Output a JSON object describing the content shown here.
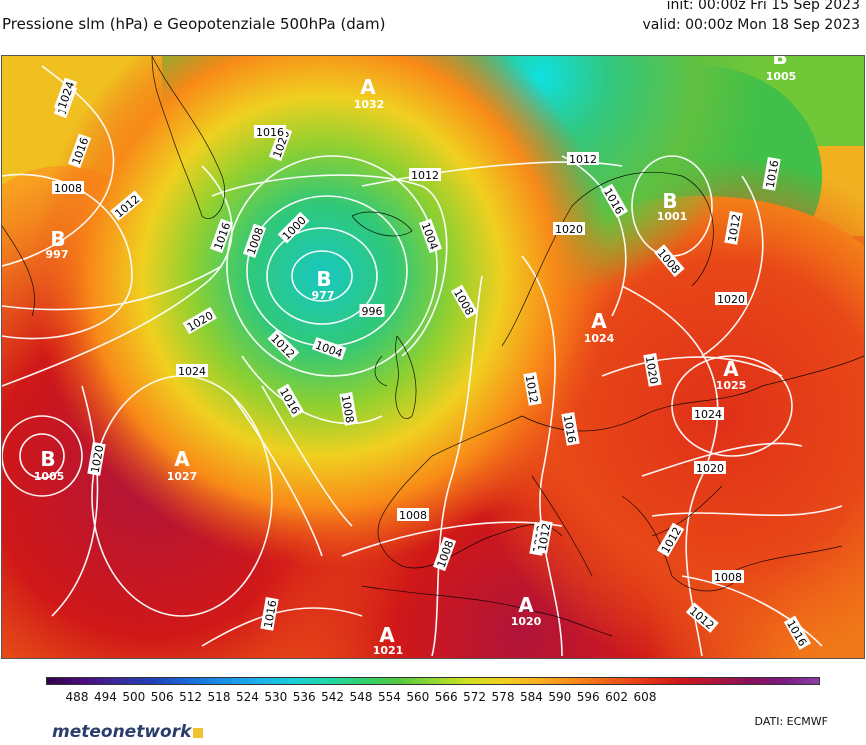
{
  "header": {
    "title": "Pressione slm (hPa) e Geopotenziale 500hPa (dam)",
    "init": "init: 00:00z Fri 15 Sep 2023",
    "valid": "valid: 00:00z Mon 18 Sep 2023"
  },
  "map": {
    "pressure_centers": [
      {
        "label": "A",
        "value": "1032",
        "kind": "high"
      },
      {
        "label": "B",
        "value": "1005",
        "kind": "low"
      },
      {
        "label": "B",
        "value": "1001",
        "kind": "low"
      },
      {
        "label": "B",
        "value": "997",
        "kind": "low"
      },
      {
        "label": "B",
        "value": "977",
        "kind": "low"
      },
      {
        "label": "B",
        "value": "1005",
        "kind": "low"
      },
      {
        "label": "A",
        "value": "1027",
        "kind": "high"
      },
      {
        "label": "A",
        "value": "1024",
        "kind": "high"
      },
      {
        "label": "A",
        "value": "1025",
        "kind": "high"
      },
      {
        "label": "A",
        "value": "1020",
        "kind": "high"
      },
      {
        "label": "A",
        "value": "1021",
        "kind": "high"
      }
    ],
    "isobar_labels": [
      "1020",
      "1016",
      "1008",
      "1012",
      "1024",
      "1020",
      "1016",
      "1008",
      "1000",
      "996",
      "1004",
      "1012",
      "1016",
      "1004",
      "1008",
      "1008",
      "1012",
      "1016",
      "1020",
      "1012",
      "1012",
      "1016",
      "1008",
      "1020",
      "1024",
      "1020",
      "1012",
      "1016",
      "1020",
      "1012",
      "1008",
      "1012",
      "1008",
      "1016",
      "1020",
      "1024",
      "1020",
      "1016",
      "1012",
      "1016",
      "1012",
      "1008",
      "1012"
    ],
    "colors": {
      "low": "#1e88c8",
      "mid": "#f0d020",
      "high": "#d62020",
      "highest": "#a0143c",
      "contour": "#ffffff"
    }
  },
  "colorbar": {
    "ticks": [
      "488",
      "494",
      "500",
      "506",
      "512",
      "518",
      "524",
      "530",
      "536",
      "542",
      "548",
      "554",
      "560",
      "566",
      "572",
      "578",
      "584",
      "590",
      "596",
      "602",
      "608"
    ],
    "colors": [
      "#30004a",
      "#4a0c7a",
      "#3a2a9a",
      "#2040b8",
      "#1a68d8",
      "#1a8ee8",
      "#1ab0e8",
      "#18cdd8",
      "#20d8a8",
      "#30d070",
      "#50c840",
      "#90d830",
      "#d0e020",
      "#f0d020",
      "#f8b020",
      "#f88a18",
      "#f06018",
      "#e83818",
      "#d01818",
      "#b0143a",
      "#8a1058",
      "#7a1a80",
      "#8a40a8"
    ]
  },
  "footer": {
    "brand": "meteonetwork",
    "credits": "DATI:  ECMWF"
  }
}
